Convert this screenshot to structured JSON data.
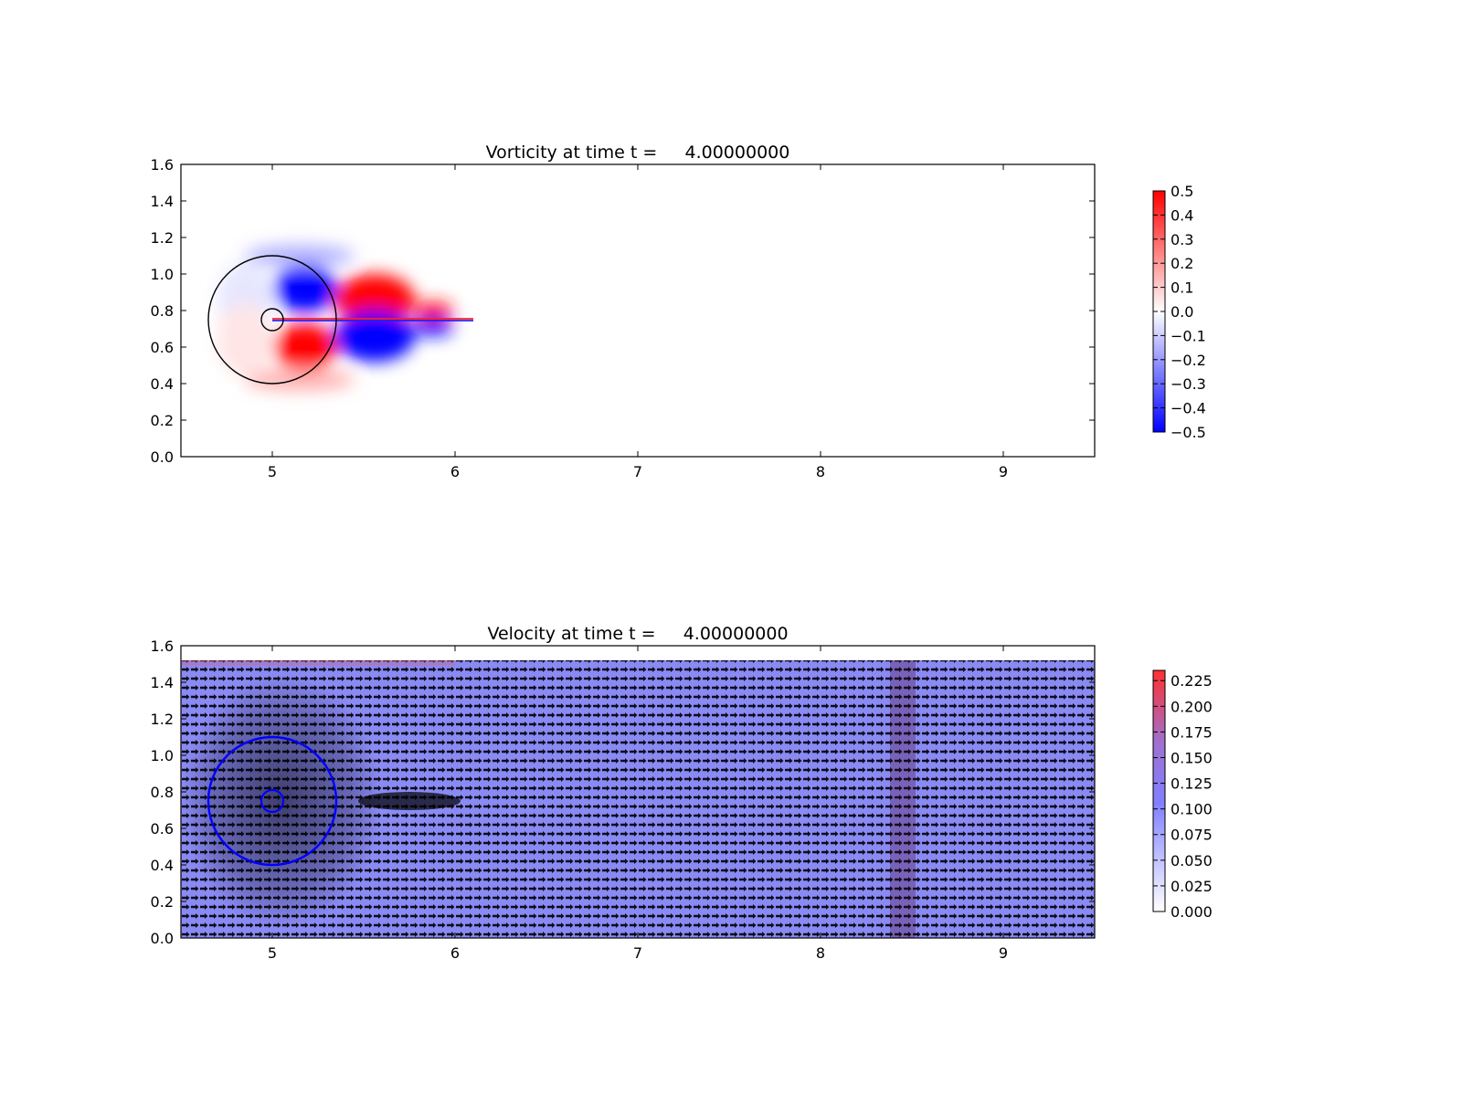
{
  "chart_data": [
    {
      "type": "heatmap",
      "title": "Vorticity at time t =     4.00000000",
      "xlabel": "",
      "ylabel": "",
      "xlim": [
        4.5,
        9.5
      ],
      "ylim": [
        0.0,
        1.6
      ],
      "xticks": [
        "5",
        "6",
        "7",
        "8",
        "9"
      ],
      "yticks": [
        "0.0",
        "0.2",
        "0.4",
        "0.6",
        "0.8",
        "1.0",
        "1.2",
        "1.4",
        "1.6"
      ],
      "colormap": {
        "low": "#0000ff",
        "mid": "#ffffff",
        "high": "#ff0000"
      },
      "colorbar_ticks": [
        "0.5",
        "0.4",
        "0.3",
        "0.2",
        "0.1",
        "0.0",
        "−0.1",
        "−0.2",
        "−0.3",
        "−0.4",
        "−0.5"
      ],
      "colorbar_range": [
        -0.5,
        0.5
      ],
      "circles": [
        {
          "cx": 5.0,
          "cy": 0.75,
          "r": 0.35,
          "color": "#000000"
        },
        {
          "cx": 5.0,
          "cy": 0.75,
          "r": 0.06,
          "color": "#000000"
        }
      ],
      "blobs": [
        {
          "x": 5.18,
          "y": 0.92,
          "rx": 0.17,
          "ry": 0.13,
          "value": -0.5
        },
        {
          "x": 5.18,
          "y": 0.6,
          "rx": 0.17,
          "ry": 0.13,
          "value": 0.5
        },
        {
          "x": 5.56,
          "y": 0.86,
          "rx": 0.22,
          "ry": 0.14,
          "value": 0.5
        },
        {
          "x": 5.56,
          "y": 0.66,
          "rx": 0.22,
          "ry": 0.14,
          "value": -0.5
        },
        {
          "x": 5.88,
          "y": 0.8,
          "rx": 0.11,
          "ry": 0.05,
          "value": 0.45
        },
        {
          "x": 5.88,
          "y": 0.71,
          "rx": 0.11,
          "ry": 0.05,
          "value": -0.45
        },
        {
          "x": 5.15,
          "y": 1.1,
          "rx": 0.3,
          "ry": 0.06,
          "value": -0.15
        },
        {
          "x": 5.15,
          "y": 0.42,
          "rx": 0.3,
          "ry": 0.06,
          "value": 0.15
        },
        {
          "x": 4.85,
          "y": 0.86,
          "rx": 0.15,
          "ry": 0.2,
          "value": -0.05
        },
        {
          "x": 4.85,
          "y": 0.64,
          "rx": 0.15,
          "ry": 0.2,
          "value": 0.05
        }
      ]
    },
    {
      "type": "heatmap",
      "title": "Velocity at time t =     4.00000000",
      "xlabel": "",
      "ylabel": "",
      "xlim": [
        4.5,
        9.5
      ],
      "ylim": [
        0.0,
        1.6
      ],
      "xticks": [
        "5",
        "6",
        "7",
        "8",
        "9"
      ],
      "yticks": [
        "0.0",
        "0.2",
        "0.4",
        "0.6",
        "0.8",
        "1.0",
        "1.2",
        "1.4",
        "1.6"
      ],
      "field_top": 1.52,
      "colormap": {
        "low": "#ffffff",
        "mid": "#8080ff",
        "high": "#ff3030"
      },
      "colorbar_ticks": [
        "0.225",
        "0.200",
        "0.175",
        "0.150",
        "0.125",
        "0.100",
        "0.075",
        "0.050",
        "0.025",
        "0.000"
      ],
      "colorbar_range": [
        0.0,
        0.235
      ],
      "circles": [
        {
          "cx": 5.0,
          "cy": 0.75,
          "r": 0.35,
          "color": "#0000ff"
        },
        {
          "cx": 5.0,
          "cy": 0.75,
          "r": 0.06,
          "color": "#0000ff"
        }
      ],
      "arrow_spacing": [
        0.05,
        0.05
      ]
    }
  ]
}
